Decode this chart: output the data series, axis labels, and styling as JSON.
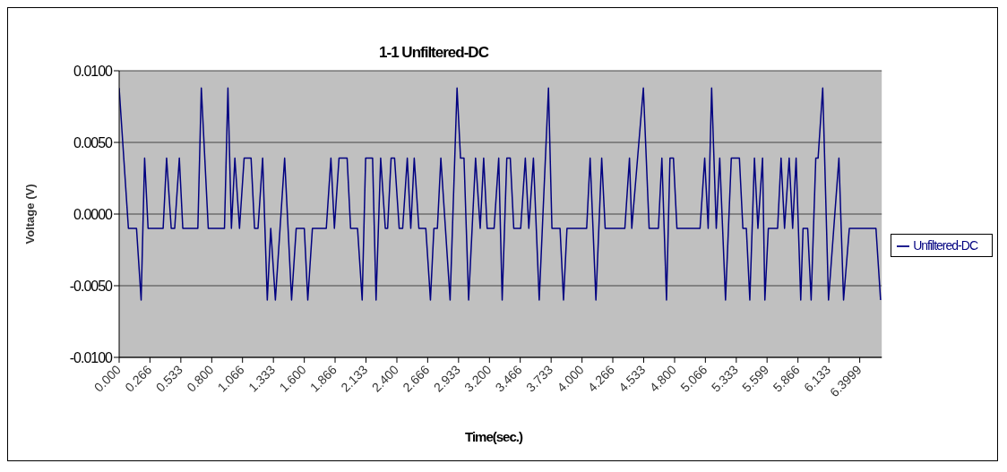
{
  "chart_data": {
    "type": "line",
    "title": "1-1 Unfiltered-DC",
    "xlabel": "Time(sec.)",
    "ylabel": "Voltage (V)",
    "xlim": [
      0,
      6.59
    ],
    "xticks": [
      {
        "value": 0,
        "label": "0.000"
      },
      0.266,
      0.533,
      {
        "value": 0.8,
        "label": "0.800"
      },
      1.066,
      1.333,
      {
        "value": 1.6,
        "label": "1.600"
      },
      1.866,
      2.133,
      {
        "value": 2.4,
        "label": "2.400"
      },
      2.666,
      2.933,
      {
        "value": 3.2,
        "label": "3.200"
      },
      3.466,
      3.733,
      {
        "value": 4.0,
        "label": "4.000"
      },
      4.266,
      4.533,
      {
        "value": 4.8,
        "label": "4.800"
      },
      5.066,
      5.333,
      5.599,
      5.866,
      6.133,
      6.3999
    ],
    "ylim": [
      -0.01,
      0.01
    ],
    "yticks": [
      {
        "value": -0.01,
        "label": "-0.0100"
      },
      {
        "value": -0.005,
        "label": "-0.0050"
      },
      {
        "value": 0,
        "label": "0.0000"
      },
      {
        "value": 0.005,
        "label": "0.0050"
      },
      {
        "value": 0.01,
        "label": "0.0100"
      }
    ],
    "grid": "y",
    "legend": "right",
    "marker": "none",
    "line_style": "solid",
    "series": [
      {
        "name": "Unfiltered-DC",
        "color": "#000080",
        "x": [
          0,
          0.08,
          0.15,
          0.19,
          0.22,
          0.25,
          0.38,
          0.41,
          0.45,
          0.48,
          0.52,
          0.55,
          0.68,
          0.71,
          0.77,
          0.91,
          0.94,
          0.97,
          1.0,
          1.04,
          1.08,
          1.14,
          1.17,
          1.2,
          1.24,
          1.28,
          1.31,
          1.35,
          1.43,
          1.49,
          1.53,
          1.6,
          1.63,
          1.67,
          1.79,
          1.83,
          1.86,
          1.9,
          1.97,
          2.0,
          2.06,
          2.1,
          2.13,
          2.19,
          2.22,
          2.26,
          2.3,
          2.32,
          2.35,
          2.38,
          2.42,
          2.45,
          2.49,
          2.52,
          2.55,
          2.59,
          2.65,
          2.69,
          2.72,
          2.75,
          2.78,
          2.86,
          2.92,
          2.95,
          2.98,
          3.02,
          3.08,
          3.12,
          3.15,
          3.18,
          3.24,
          3.28,
          3.31,
          3.35,
          3.38,
          3.41,
          3.47,
          3.51,
          3.54,
          3.58,
          3.63,
          3.71,
          3.74,
          3.81,
          3.84,
          3.87,
          4.04,
          4.07,
          4.12,
          4.17,
          4.2,
          4.37,
          4.41,
          4.43,
          4.53,
          4.58,
          4.66,
          4.69,
          4.73,
          4.76,
          4.79,
          4.82,
          5.02,
          5.06,
          5.09,
          5.12,
          5.16,
          5.19,
          5.24,
          5.29,
          5.36,
          5.39,
          5.42,
          5.45,
          5.49,
          5.52,
          5.56,
          5.58,
          5.61,
          5.69,
          5.72,
          5.75,
          5.79,
          5.82,
          5.85,
          5.89,
          5.91,
          5.95,
          5.98,
          6.02,
          6.04,
          6.08,
          6.13,
          6.22,
          6.26,
          6.31,
          6.54,
          6.58
        ],
        "values": [
          0.0088,
          -0.001,
          -0.001,
          -0.006,
          0.0039,
          -0.001,
          -0.001,
          0.0039,
          -0.001,
          -0.001,
          0.0039,
          -0.001,
          -0.001,
          0.0088,
          -0.001,
          -0.001,
          0.0088,
          -0.001,
          0.0039,
          -0.001,
          0.0039,
          0.0039,
          -0.001,
          -0.001,
          0.0039,
          -0.006,
          -0.001,
          -0.006,
          0.0039,
          -0.006,
          -0.001,
          -0.001,
          -0.006,
          -0.001,
          -0.001,
          0.0039,
          -0.001,
          0.0039,
          0.0039,
          -0.001,
          -0.001,
          -0.006,
          0.0039,
          0.0039,
          -0.006,
          0.0039,
          -0.001,
          -0.001,
          0.0039,
          0.0039,
          -0.001,
          -0.001,
          0.0039,
          -0.001,
          0.0039,
          -0.001,
          -0.001,
          -0.006,
          -0.001,
          -0.001,
          0.0039,
          -0.006,
          0.0088,
          0.0039,
          0.0039,
          -0.006,
          0.0039,
          -0.001,
          0.0039,
          -0.001,
          -0.001,
          0.0039,
          -0.006,
          0.0039,
          0.0039,
          -0.001,
          -0.001,
          0.0039,
          -0.001,
          0.0039,
          -0.006,
          0.0088,
          -0.001,
          -0.001,
          -0.006,
          -0.001,
          -0.001,
          0.0039,
          -0.006,
          0.0039,
          -0.001,
          -0.001,
          0.0039,
          -0.001,
          0.0088,
          -0.001,
          -0.001,
          0.0039,
          -0.006,
          0.0039,
          0.0039,
          -0.001,
          -0.001,
          0.0039,
          -0.001,
          0.0088,
          -0.001,
          0.0039,
          -0.006,
          0.0039,
          0.0039,
          -0.001,
          -0.001,
          -0.006,
          0.0039,
          -0.001,
          0.0039,
          -0.006,
          -0.001,
          -0.001,
          0.0039,
          -0.001,
          0.0039,
          -0.001,
          0.0039,
          -0.006,
          -0.001,
          -0.001,
          -0.006,
          0.0039,
          0.0039,
          0.0088,
          -0.006,
          0.0039,
          -0.006,
          -0.001,
          -0.001,
          -0.006
        ]
      }
    ]
  }
}
